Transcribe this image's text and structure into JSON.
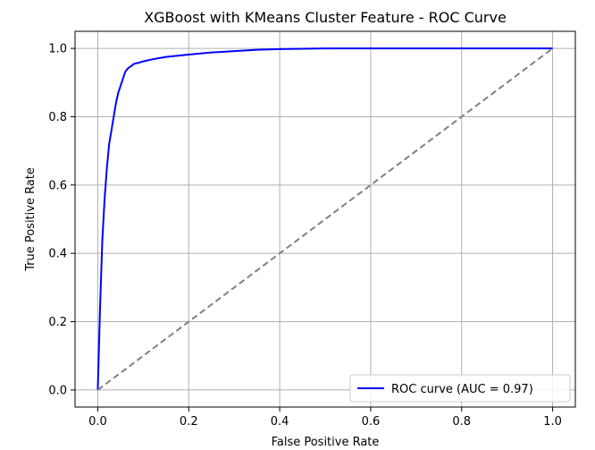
{
  "chart_data": {
    "type": "line",
    "title": "XGBoost with KMeans Cluster Feature - ROC Curve",
    "xlabel": "False Positive Rate",
    "ylabel": "True Positive Rate",
    "xlim": [
      -0.05,
      1.05
    ],
    "ylim": [
      -0.05,
      1.05
    ],
    "xticks": [
      "0.0",
      "0.2",
      "0.4",
      "0.6",
      "0.8",
      "1.0"
    ],
    "yticks": [
      "0.0",
      "0.2",
      "0.4",
      "0.6",
      "0.8",
      "1.0"
    ],
    "grid": true,
    "legend_position": "lower-right",
    "series": [
      {
        "name": "ROC curve (AUC = 0.97)",
        "color": "#0000ff",
        "line_style": "solid",
        "x": [
          0.0,
          0.005,
          0.01,
          0.015,
          0.02,
          0.025,
          0.03,
          0.035,
          0.04,
          0.045,
          0.05,
          0.055,
          0.06,
          0.065,
          0.07,
          0.075,
          0.08,
          0.09,
          0.1,
          0.12,
          0.15,
          0.2,
          0.25,
          0.3,
          0.35,
          0.4,
          0.5,
          0.6,
          0.7,
          0.8,
          0.9,
          1.0
        ],
        "y": [
          0.0,
          0.24,
          0.44,
          0.56,
          0.65,
          0.72,
          0.76,
          0.8,
          0.84,
          0.87,
          0.89,
          0.91,
          0.93,
          0.94,
          0.945,
          0.95,
          0.955,
          0.958,
          0.962,
          0.968,
          0.975,
          0.982,
          0.988,
          0.992,
          0.996,
          0.998,
          1.0,
          1.0,
          1.0,
          1.0,
          1.0,
          1.0
        ]
      },
      {
        "color": "#808080",
        "line_style": "dashed",
        "x": [
          0.0,
          1.0
        ],
        "y": [
          0.0,
          1.0
        ]
      }
    ]
  }
}
